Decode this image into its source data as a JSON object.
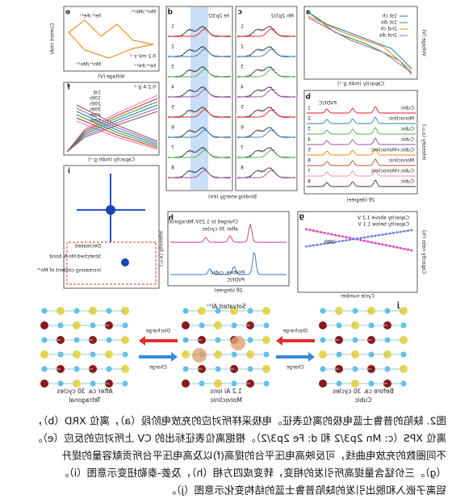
{
  "panels": {
    "a": {
      "letter": "a",
      "x_label": "Capacity (mAh g⁻¹)",
      "y_label": "Voltage (V)",
      "legend": [
        "1st ch",
        "1st dis",
        "2nd ch",
        "2nd dis"
      ]
    },
    "b": {
      "letter": "b",
      "x_label": "2θ (degree)",
      "y_label": "Intensity (a.u.)",
      "marker": "PVDF/C",
      "phases": [
        "Cubic",
        "Monoclinic",
        "Cubic",
        "Cubic",
        "Cubic+Monoclinic",
        "Monoclinic",
        "Cubic+Monoclinic",
        "Cubic"
      ],
      "rows": [
        1,
        2,
        3,
        4,
        5,
        6,
        7,
        8
      ]
    },
    "c": {
      "letter": "c",
      "title": "Mn 2p3/2",
      "x_label": "Binding energy (eV)",
      "rows": [
        1,
        2,
        3,
        4,
        5,
        6,
        7,
        8
      ]
    },
    "d": {
      "letter": "d",
      "title": "Fe 2p3/2",
      "rows": [
        1,
        2,
        3,
        4,
        5,
        6,
        7,
        8
      ]
    },
    "e": {
      "letter": "e",
      "x_label": "Voltage (V)",
      "y_label": "Current (mA)",
      "note": "0.2 mV s⁻¹",
      "labels": [
        "Mn²⁺/Mn³⁺",
        "Fe²⁺/Fe³⁺",
        "Fe³⁺/Fe²⁺",
        "Mn³⁺/Mn²⁺"
      ]
    },
    "f": {
      "letter": "f",
      "x_label": "Capacity (mAh g⁻¹)",
      "note": "0.2 A g⁻¹",
      "legend": [
        "1st",
        "10th",
        "20th",
        "30th",
        "40th",
        "50th"
      ]
    },
    "g": {
      "letter": "g",
      "x_label": "Cycle number",
      "y_label": "Capacity ratio (%)",
      "legend": [
        "Capacity above 1.2 V",
        "Capacity below 1.1 V"
      ],
      "note": "28th"
    },
    "h": {
      "letter": "h",
      "x_label": "2θ (degree)",
      "y_label": "Intensity (a.u.)",
      "labels": [
        "Charged to 1.25V,Tetragonal",
        "after 30 cycles",
        "Pristine, cubic",
        "PVDF/C"
      ]
    },
    "i": {
      "letter": "i",
      "labels": [
        "Stretched Mn-N bond",
        "Decreased",
        "Increasing content of Mn³⁺"
      ]
    },
    "j": {
      "letter": "j",
      "states": [
        "Before ca. 30 cycles",
        "Cubic",
        "1.2 Al ions",
        "Monoclinic",
        "After ca. 30 cycles",
        "Tetragonal"
      ],
      "arrows": [
        "Discharge",
        "Charge",
        "Discharge",
        "Charge"
      ],
      "solvated": "Solvated Al³⁺"
    }
  },
  "caption": [
    "图2. 缺陷的普鲁士蓝电极的离位表征。电极采样所对应的充放电阶段（a），离位 XRD（b），",
    "离位 XPS（c: Mn 2p3/2 和 d: Fe 2p3/2）。根据离位表征标出的 CV 上所对应的反应（e）。",
    "不同圈数的充放电曲线，可反映高电压平台的提高(f)以及高电压平台所贡献容量的提升",
    "（g）。三价锰含量提高所引发的相变，转变成四方相（h），及姜-泰勒扭变示意图（i）。",
    "铝离子嵌入和脱出引发的缺陷普鲁士蓝的结构变化示意图（j）。"
  ]
}
